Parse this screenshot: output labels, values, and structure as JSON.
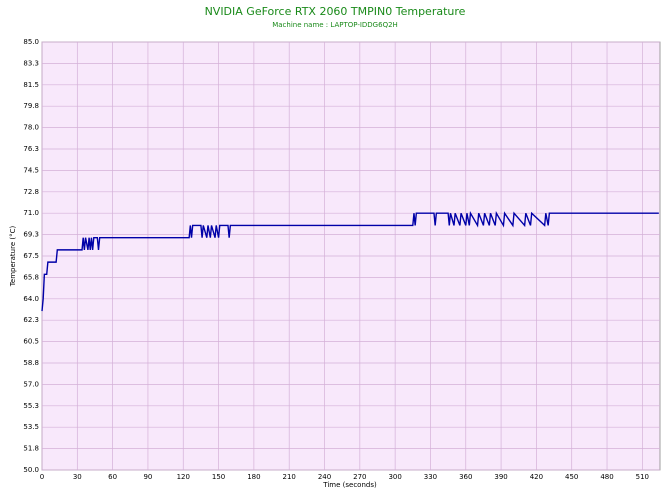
{
  "chart_data": {
    "type": "line",
    "title": "NVIDIA GeForce RTX 2060 TMPIN0 Temperature",
    "subtitle": "Machine name : LAPTOP-IDDG6Q2H",
    "x_label": "Time (seconds)",
    "y_label": "Temperature (°C)",
    "xlim": [
      0,
      525
    ],
    "ylim": [
      50,
      85
    ],
    "grid": true,
    "xticks": [
      0,
      30,
      60,
      90,
      120,
      150,
      180,
      210,
      240,
      270,
      300,
      330,
      360,
      390,
      420,
      450,
      480,
      510
    ],
    "yticks": [
      {
        "value": 85,
        "label": "85.0"
      },
      {
        "value": 83.25,
        "label": "83.3"
      },
      {
        "value": 81.5,
        "label": "81.5"
      },
      {
        "value": 79.75,
        "label": "79.8"
      },
      {
        "value": 78,
        "label": "78.0"
      },
      {
        "value": 76.25,
        "label": "76.3"
      },
      {
        "value": 74.5,
        "label": "74.5"
      },
      {
        "value": 72.75,
        "label": "72.8"
      },
      {
        "value": 71,
        "label": "71.0"
      },
      {
        "value": 69.25,
        "label": "69.3"
      },
      {
        "value": 67.5,
        "label": "67.5"
      },
      {
        "value": 65.75,
        "label": "65.8"
      },
      {
        "value": 64,
        "label": "64.0"
      },
      {
        "value": 62.25,
        "label": "62.3"
      },
      {
        "value": 60.5,
        "label": "60.5"
      },
      {
        "value": 58.75,
        "label": "58.8"
      },
      {
        "value": 57,
        "label": "57.0"
      },
      {
        "value": 55.25,
        "label": "55.3"
      },
      {
        "value": 53.5,
        "label": "53.5"
      },
      {
        "value": 51.75,
        "label": "51.8"
      },
      {
        "value": 50,
        "label": "50.0"
      }
    ],
    "series": [
      {
        "color": "#0000a8",
        "x": [
          0,
          1,
          2,
          4,
          5,
          12,
          13,
          34,
          35,
          36,
          37,
          39,
          40,
          41,
          42,
          43,
          44,
          47,
          48,
          49,
          125,
          126,
          127,
          128,
          135,
          136,
          137,
          140,
          141,
          143,
          144,
          147,
          148,
          150,
          151,
          158,
          159,
          160,
          315,
          316,
          317,
          318,
          333,
          334,
          335,
          345,
          346,
          347,
          350,
          351,
          355,
          356,
          360,
          361,
          363,
          364,
          370,
          371,
          375,
          376,
          380,
          381,
          385,
          386,
          392,
          393,
          400,
          401,
          410,
          411,
          415,
          416,
          427,
          428,
          430,
          431,
          524
        ],
        "values": [
          63,
          64,
          66,
          66,
          67,
          67,
          68,
          68,
          69,
          68,
          69,
          68,
          69,
          68,
          69,
          68,
          69,
          69,
          68,
          69,
          69,
          70,
          69,
          70,
          70,
          69,
          70,
          69,
          70,
          69,
          70,
          69,
          70,
          69,
          70,
          70,
          69,
          70,
          70,
          71,
          70,
          71,
          71,
          70,
          71,
          71,
          70,
          71,
          70,
          71,
          70,
          71,
          70,
          71,
          70,
          71,
          70,
          71,
          70,
          71,
          70,
          71,
          70,
          71,
          70,
          71,
          70,
          71,
          70,
          71,
          70,
          71,
          70,
          71,
          70,
          71,
          71
        ]
      }
    ]
  }
}
